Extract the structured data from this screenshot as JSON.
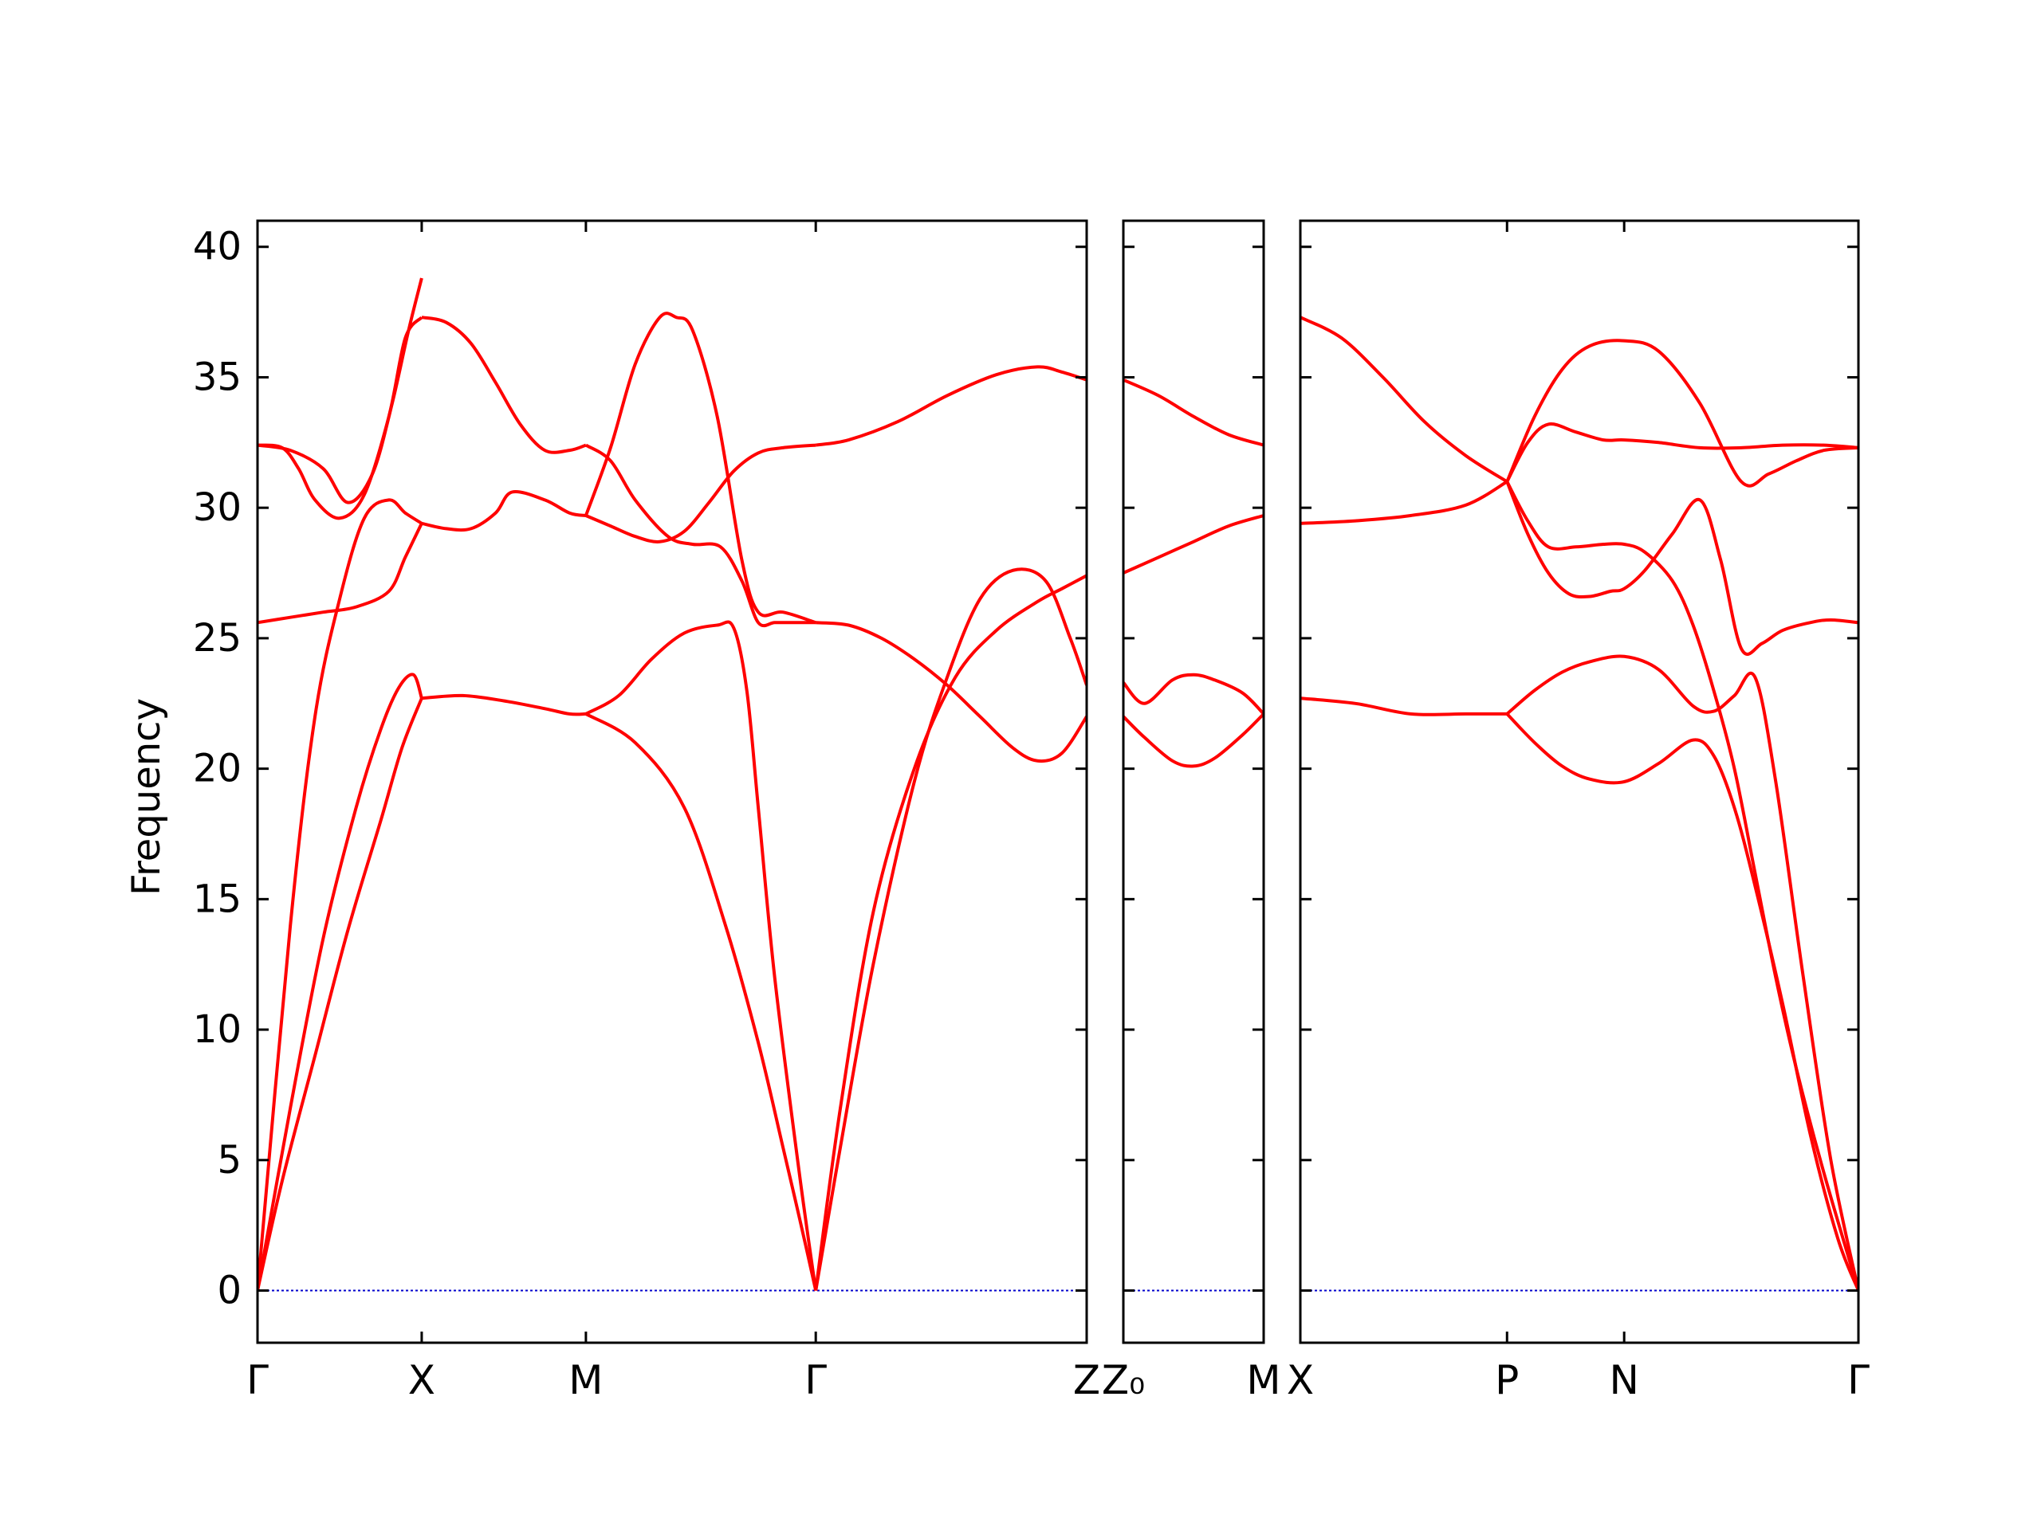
{
  "chart_data": {
    "type": "line",
    "ylabel": "Frequency",
    "ylim": [
      -2,
      41
    ],
    "yticks": [
      0,
      5,
      10,
      15,
      20,
      25,
      30,
      35,
      40
    ],
    "line_color": "#ff0000",
    "zero_line_color": "#0000cc",
    "grid": false,
    "panels": [
      {
        "k_labels": [
          {
            "x": 0,
            "label": "Γ"
          },
          {
            "x": 1,
            "label": "X"
          },
          {
            "x": 2,
            "label": "M"
          },
          {
            "x": 3.4,
            "label": "Γ"
          },
          {
            "x": 5.05,
            "label": "Z"
          }
        ],
        "x_range": [
          0,
          5.05
        ],
        "series": [
          {
            "x": [
              0,
              0.15,
              0.35,
              0.55,
              0.75,
              0.88,
              1
            ],
            "values": [
              0,
              4.2,
              9,
              13.8,
              18,
              20.8,
              22.7
            ]
          },
          {
            "x": [
              1,
              1.25,
              1.5,
              1.75,
              1.9,
              2
            ],
            "values": [
              22.7,
              22.8,
              22.6,
              22.3,
              22.1,
              22.1
            ]
          },
          {
            "x": [
              2,
              2.3,
              2.6,
              2.85,
              3.05,
              3.2,
              3.3,
              3.4
            ],
            "values": [
              22.1,
              21,
              18.5,
              14,
              9.5,
              5.5,
              2.8,
              0
            ]
          },
          {
            "x": [
              3.4,
              3.55,
              3.75,
              4.0,
              4.25,
              4.5,
              4.75,
              4.9,
              5.05
            ],
            "values": [
              0,
              7,
              14.5,
              20,
              23.5,
              25.3,
              26.4,
              26.9,
              27.4
            ]
          },
          {
            "x": [
              0,
              0.2,
              0.4,
              0.6,
              0.75,
              0.86,
              0.95,
              1
            ],
            "values": [
              0,
              7,
              13.5,
              18.5,
              21.5,
              23.1,
              23.6,
              22.7
            ]
          },
          {
            "x": [
              2,
              2.2,
              2.4,
              2.6,
              2.8,
              2.9,
              2.98,
              3.05,
              3.15,
              3.3,
              3.4
            ],
            "values": [
              22.1,
              22.8,
              24.2,
              25.2,
              25.5,
              25.4,
              23,
              18.5,
              12,
              4.5,
              0
            ]
          },
          {
            "x": [
              3.4,
              3.55,
              3.75,
              4.0,
              4.2,
              4.4,
              4.6,
              4.8,
              4.95,
              5.05
            ],
            "values": [
              0,
              5.5,
              12.5,
              19.5,
              23.5,
              26.5,
              27.6,
              27.2,
              25,
              23.2
            ]
          },
          {
            "x": [
              0,
              0.2,
              0.35,
              0.5,
              0.65,
              0.8,
              0.9,
              1
            ],
            "values": [
              0,
              14,
              22,
              26.5,
              29.6,
              30.3,
              29.8,
              29.4
            ]
          },
          {
            "x": [
              1,
              1.15,
              1.3,
              1.45,
              1.55,
              1.75,
              1.9,
              2
            ],
            "values": [
              29.4,
              29.2,
              29.2,
              29.8,
              30.6,
              30.3,
              29.8,
              29.7
            ]
          },
          {
            "x": [
              2,
              2.15,
              2.3,
              2.45,
              2.6,
              2.75,
              2.9,
              3.05,
              3.2,
              3.4
            ],
            "values": [
              29.7,
              29.3,
              28.9,
              28.7,
              29.1,
              30.2,
              31.4,
              32.1,
              32.3,
              32.4
            ]
          },
          {
            "x": [
              3.4,
              3.6,
              3.9,
              4.2,
              4.5,
              4.75,
              4.9,
              5.05
            ],
            "values": [
              32.4,
              32.6,
              33.3,
              34.3,
              35.1,
              35.4,
              35.2,
              34.9
            ]
          },
          {
            "x": [
              0,
              0.15,
              0.25,
              0.35,
              0.5,
              0.65,
              0.8,
              0.9,
              1
            ],
            "values": [
              32.4,
              32.3,
              31.5,
              30.3,
              29.6,
              30.5,
              33.5,
              36.5,
              37.3
            ]
          },
          {
            "x": [
              1,
              1.15,
              1.3,
              1.45,
              1.6,
              1.75,
              1.9,
              2
            ],
            "values": [
              37.3,
              37.1,
              36.3,
              34.8,
              33.2,
              32.2,
              32.2,
              32.4
            ]
          },
          {
            "x": [
              2,
              2.15,
              2.3,
              2.5,
              2.65,
              2.82,
              2.95,
              3.05,
              3.15,
              3.25,
              3.4
            ],
            "values": [
              32.4,
              31.8,
              30.3,
              28.9,
              28.6,
              28.5,
              27.2,
              25.6,
              25.6,
              25.6,
              25.6
            ]
          },
          {
            "x": [
              3.4,
              3.6,
              3.8,
              4.0,
              4.2,
              4.4,
              4.6,
              4.75,
              4.9,
              5.05
            ],
            "values": [
              25.6,
              25.5,
              25,
              24.2,
              23.2,
              22,
              20.8,
              20.3,
              20.6,
              22
            ]
          },
          {
            "x": [
              0,
              0.2,
              0.4,
              0.6,
              0.8,
              0.9,
              1
            ],
            "values": [
              25.6,
              25.8,
              26.0,
              26.2,
              26.8,
              28.1,
              29.4
            ]
          },
          {
            "x": [
              0,
              0.2,
              0.4,
              0.55,
              0.7,
              0.82,
              0.92,
              1
            ],
            "values": [
              32.4,
              32.2,
              31.5,
              30.2,
              31.3,
              34,
              36.8,
              38.8
            ]
          },
          {
            "x": [
              2,
              2.15,
              2.3,
              2.45,
              2.55,
              2.65,
              2.8,
              2.95,
              3.05,
              3.2,
              3.4
            ],
            "values": [
              29.7,
              32.3,
              35.5,
              37.3,
              37.3,
              36.8,
              33.5,
              28,
              26,
              26,
              25.6
            ]
          }
        ]
      },
      {
        "k_labels": [
          {
            "x": 0,
            "label": "Z₀"
          },
          {
            "x": 1,
            "label": "M"
          }
        ],
        "x_range": [
          0,
          1
        ],
        "series": [
          {
            "x": [
              0,
              0.25,
              0.5,
              0.75,
              1
            ],
            "values": [
              34.9,
              34.3,
              33.5,
              32.8,
              32.4
            ]
          },
          {
            "x": [
              0,
              0.25,
              0.5,
              0.75,
              1
            ],
            "values": [
              27.5,
              28.1,
              28.7,
              29.3,
              29.7
            ]
          },
          {
            "x": [
              0,
              0.15,
              0.35,
              0.5,
              0.65,
              0.85,
              1
            ],
            "values": [
              22,
              21.2,
              20.3,
              20.1,
              20.4,
              21.3,
              22.1
            ]
          },
          {
            "x": [
              0,
              0.15,
              0.35,
              0.5,
              0.65,
              0.85,
              1
            ],
            "values": [
              23.3,
              22.5,
              23.4,
              23.6,
              23.4,
              22.9,
              22.1
            ]
          }
        ]
      },
      {
        "k_labels": [
          {
            "x": 0,
            "label": "X"
          },
          {
            "x": 1.5,
            "label": "P"
          },
          {
            "x": 2.35,
            "label": "N"
          },
          {
            "x": 4.05,
            "label": "Γ"
          }
        ],
        "x_range": [
          0,
          4.05
        ],
        "series": [
          {
            "x": [
              0,
              0.3,
              0.6,
              0.9,
              1.2,
              1.5
            ],
            "values": [
              37.3,
              36.5,
              35,
              33.3,
              32,
              31
            ]
          },
          {
            "x": [
              0,
              0.4,
              0.8,
              1.2,
              1.5
            ],
            "values": [
              29.4,
              29.5,
              29.7,
              30.1,
              31
            ]
          },
          {
            "x": [
              0,
              0.4,
              0.8,
              1.2,
              1.5
            ],
            "values": [
              22.7,
              22.5,
              22.1,
              22.1,
              22.1
            ]
          },
          {
            "x": [
              1.5,
              1.7,
              1.9,
              2.1,
              2.35,
              2.6,
              2.9,
              3.2,
              3.4,
              3.6,
              3.8,
              4.05
            ],
            "values": [
              31,
              33.5,
              35.3,
              36.2,
              36.4,
              36,
              34,
              31,
              31.3,
              31.8,
              32.2,
              32.3
            ]
          },
          {
            "x": [
              1.5,
              1.65,
              1.8,
              2.0,
              2.2,
              2.35,
              2.6,
              2.9,
              3.2,
              3.5,
              3.8,
              4.05
            ],
            "values": [
              31,
              32.5,
              33.2,
              32.9,
              32.6,
              32.6,
              32.5,
              32.3,
              32.3,
              32.4,
              32.4,
              32.3
            ]
          },
          {
            "x": [
              1.5,
              1.65,
              1.8,
              2.0,
              2.2,
              2.35,
              2.5,
              2.7,
              2.85,
              3.0,
              3.15,
              3.3,
              3.45,
              3.6,
              3.8,
              4.05
            ],
            "values": [
              31,
              29.5,
              28.5,
              28.5,
              28.6,
              28.6,
              28.3,
              27.2,
              25.5,
              23,
              20,
              16,
              12,
              8.5,
              4.5,
              0
            ]
          },
          {
            "x": [
              1.5,
              1.65,
              1.8,
              1.95,
              2.1,
              2.25,
              2.35,
              2.5,
              2.7,
              2.9,
              3.05,
              3.2,
              3.35,
              3.5,
              3.7,
              3.85,
              4.05
            ],
            "values": [
              31,
              29,
              27.5,
              26.7,
              26.6,
              26.8,
              26.9,
              27.6,
              29,
              30.3,
              28,
              24.6,
              24.8,
              25.3,
              25.6,
              25.7,
              25.6
            ]
          },
          {
            "x": [
              1.5,
              1.7,
              1.9,
              2.1,
              2.35,
              2.6,
              2.85,
              3.0,
              3.15,
              3.3,
              3.45,
              3.65,
              3.85,
              4.05
            ],
            "values": [
              22.1,
              23,
              23.7,
              24.1,
              24.3,
              23.8,
              22.4,
              22.2,
              22.8,
              23.5,
              19.5,
              12,
              5,
              0
            ]
          },
          {
            "x": [
              1.5,
              1.7,
              1.9,
              2.1,
              2.35,
              2.6,
              2.85,
              3.0,
              3.15,
              3.3,
              3.5,
              3.7,
              3.9,
              4.05
            ],
            "values": [
              22.1,
              21,
              20.1,
              19.6,
              19.5,
              20.2,
              21.1,
              20.5,
              18.5,
              15.5,
              11,
              6,
              2,
              0
            ]
          }
        ]
      }
    ]
  }
}
